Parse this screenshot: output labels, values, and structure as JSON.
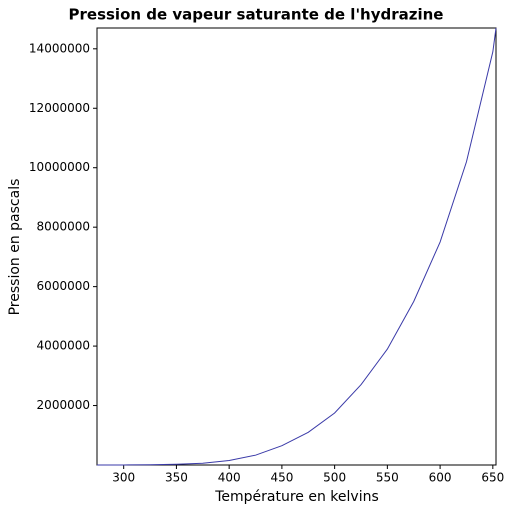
{
  "chart_data": {
    "type": "line",
    "title": "Pression de vapeur saturante de l'hydrazine",
    "x_label": "Température en kelvins",
    "y_label": "Pression en pascals",
    "x": [
      274.7,
      300,
      325,
      350,
      375,
      400,
      425,
      450,
      475,
      500,
      525,
      550,
      575,
      600,
      625,
      650,
      653
    ],
    "series": [
      {
        "color": "#3a3aa8",
        "values": [
          500,
          2000,
          7000,
          25000,
          60000,
          150000,
          330000,
          650000,
          1100000,
          1750000,
          2700000,
          3900000,
          5500000,
          7500000,
          10200000,
          13900000,
          14700000
        ]
      }
    ],
    "xlim": [
      274.7,
      653
    ],
    "xticks": [
      300,
      350,
      400,
      450,
      500,
      550,
      600,
      650
    ],
    "ylim": [
      0,
      14700000
    ],
    "yticks": [
      2000000,
      4000000,
      6000000,
      8000000,
      10000000,
      12000000,
      14000000
    ],
    "grid": false
  }
}
